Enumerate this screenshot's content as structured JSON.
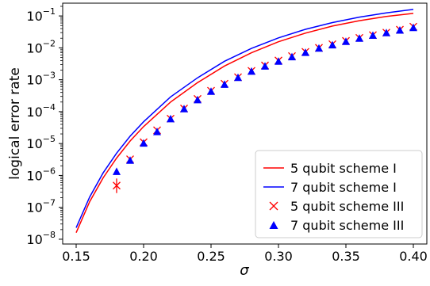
{
  "chart_data": {
    "type": "line",
    "title": "",
    "xlabel": "σ",
    "ylabel": "logical error rate",
    "xlim": [
      0.14,
      0.41
    ],
    "yscale": "log",
    "ylim_log10": [
      -8.15,
      -0.6
    ],
    "xticks": [
      0.15,
      0.2,
      0.25,
      0.3,
      0.35,
      0.4
    ],
    "xtick_labels": [
      "0.15",
      "0.20",
      "0.25",
      "0.30",
      "0.35",
      "0.40"
    ],
    "yticks_log10": [
      -8,
      -7,
      -6,
      -5,
      -4,
      -3,
      -2,
      -1
    ],
    "ytick_labels": [
      {
        "base": "10",
        "exp": "−8"
      },
      {
        "base": "10",
        "exp": "−7"
      },
      {
        "base": "10",
        "exp": "−6"
      },
      {
        "base": "10",
        "exp": "−5"
      },
      {
        "base": "10",
        "exp": "−4"
      },
      {
        "base": "10",
        "exp": "−3"
      },
      {
        "base": "10",
        "exp": "−2"
      },
      {
        "base": "10",
        "exp": "−1"
      }
    ],
    "grid": false,
    "legend_position": "bottom-right",
    "colors": {
      "red": "#ff0000",
      "blue": "#0000ff"
    },
    "series": [
      {
        "name": "5 qubit scheme I",
        "kind": "line",
        "color": "#ff0000",
        "x": [
          0.15,
          0.16,
          0.17,
          0.18,
          0.19,
          0.2,
          0.22,
          0.24,
          0.26,
          0.28,
          0.3,
          0.32,
          0.34,
          0.36,
          0.38,
          0.4
        ],
        "y": [
          1.6e-08,
          1.5e-07,
          8.4e-07,
          3.5e-06,
          1.2e-05,
          3.4e-05,
          0.0002,
          0.00081,
          0.0027,
          0.007,
          0.0155,
          0.029,
          0.048,
          0.071,
          0.096,
          0.12
        ]
      },
      {
        "name": "7 qubit scheme I",
        "kind": "line",
        "color": "#0000ff",
        "x": [
          0.15,
          0.16,
          0.17,
          0.18,
          0.19,
          0.2,
          0.22,
          0.24,
          0.26,
          0.28,
          0.3,
          0.32,
          0.34,
          0.36,
          0.38,
          0.4
        ],
        "y": [
          2.3e-08,
          2.1e-07,
          1.2e-06,
          5e-06,
          1.7e-05,
          4.8e-05,
          0.00029,
          0.00115,
          0.0038,
          0.0096,
          0.0205,
          0.038,
          0.062,
          0.092,
          0.125,
          0.16
        ]
      },
      {
        "name": "5 qubit scheme III",
        "kind": "scatter",
        "marker": "x",
        "color": "#ff0000",
        "x": [
          0.18,
          0.19,
          0.2,
          0.21,
          0.22,
          0.23,
          0.24,
          0.25,
          0.26,
          0.27,
          0.28,
          0.29,
          0.3,
          0.31,
          0.32,
          0.33,
          0.34,
          0.35,
          0.36,
          0.37,
          0.38,
          0.39,
          0.4
        ],
        "y": [
          4.8e-07,
          3.2e-06,
          1.1e-05,
          2.6e-05,
          6e-05,
          0.000125,
          0.00025,
          0.00045,
          0.00075,
          0.0012,
          0.0019,
          0.0028,
          0.004,
          0.0055,
          0.0075,
          0.01,
          0.013,
          0.0165,
          0.0205,
          0.025,
          0.03,
          0.037,
          0.046
        ],
        "yerr_low": [
          2.8e-07
        ],
        "yerr_high": [
          8e-07
        ]
      },
      {
        "name": "7 qubit scheme III",
        "kind": "scatter",
        "marker": "triangle",
        "color": "#0000ff",
        "x": [
          0.18,
          0.19,
          0.2,
          0.21,
          0.22,
          0.23,
          0.24,
          0.25,
          0.26,
          0.27,
          0.28,
          0.29,
          0.3,
          0.31,
          0.32,
          0.33,
          0.34,
          0.35,
          0.36,
          0.37,
          0.38,
          0.39,
          0.4
        ],
        "y": [
          1.3e-06,
          2.9e-06,
          1e-05,
          2.3e-05,
          5.8e-05,
          0.00012,
          0.00023,
          0.00042,
          0.0007,
          0.00115,
          0.0018,
          0.0026,
          0.0037,
          0.0051,
          0.007,
          0.0095,
          0.012,
          0.0155,
          0.0195,
          0.024,
          0.029,
          0.035,
          0.042
        ]
      }
    ]
  }
}
